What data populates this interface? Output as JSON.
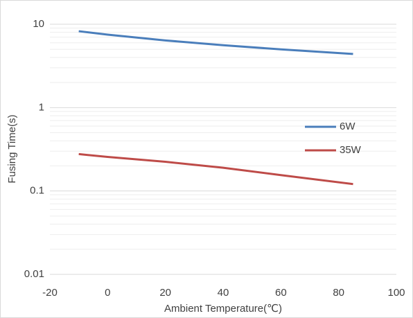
{
  "chart_data": {
    "type": "line",
    "x": [
      -10,
      0,
      20,
      40,
      60,
      85
    ],
    "series": [
      {
        "name": "6W",
        "color": "#4a7ebb",
        "values": [
          8.25,
          7.5,
          6.4,
          5.6,
          5.0,
          4.4
        ]
      },
      {
        "name": "35W",
        "color": "#be4b48",
        "values": [
          0.277,
          0.256,
          0.224,
          0.19,
          0.155,
          0.121
        ]
      }
    ],
    "xlabel": "Ambient Temperature(℃)",
    "ylabel": "Fusing Time(s)",
    "xlim": [
      -20,
      100
    ],
    "xticks": [
      -20,
      0,
      20,
      40,
      60,
      80,
      100
    ],
    "ylim": [
      0.01,
      10
    ],
    "yticks": [
      0.01,
      0.1,
      1,
      10
    ],
    "ylog": true,
    "grid": true,
    "minor_grid": true,
    "legend": "right"
  }
}
